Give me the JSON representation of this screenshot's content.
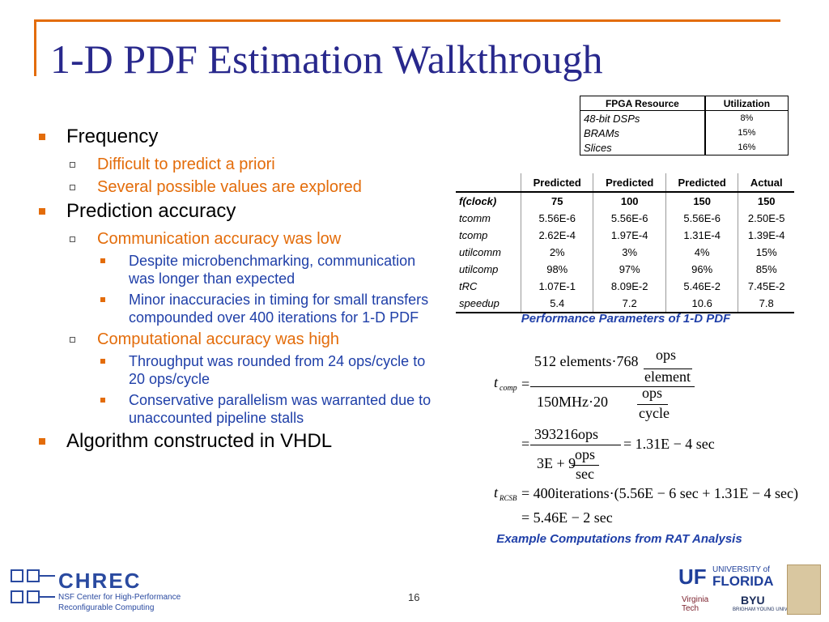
{
  "title": "1-D PDF Estimation Walkthrough",
  "bullets": [
    {
      "level": 0,
      "text": "Frequency"
    },
    {
      "level": 1,
      "text": "Difficult to predict a priori"
    },
    {
      "level": 1,
      "text": "Several possible values are explored"
    },
    {
      "level": 0,
      "text": "Prediction accuracy"
    },
    {
      "level": 1,
      "text": "Communication accuracy was low"
    },
    {
      "level": 2,
      "text": "Despite microbenchmarking, communication was longer than expected"
    },
    {
      "level": 2,
      "text": "Minor inaccuracies in timing for small transfers compounded over 400 iterations for 1-D PDF"
    },
    {
      "level": 1,
      "text": "Computational accuracy was high"
    },
    {
      "level": 2,
      "text": "Throughput was rounded from 24 ops/cycle to 20 ops/cycle"
    },
    {
      "level": 2,
      "text": "Conservative parallelism was warranted due to unaccounted pipeline stalls"
    },
    {
      "level": 0,
      "text": "Algorithm constructed in VHDL"
    }
  ],
  "fpga_table": {
    "header": [
      "FPGA Resource",
      "Utilization"
    ],
    "rows": [
      [
        "48-bit DSPs",
        "8%"
      ],
      [
        "BRAMs",
        "15%"
      ],
      [
        "Slices",
        "16%"
      ]
    ]
  },
  "perf_table": {
    "header": [
      "Predicted",
      "Predicted",
      "Predicted",
      "Actual"
    ],
    "rows": [
      [
        "f(clock)",
        "75",
        "100",
        "150",
        "150"
      ],
      [
        "tcomm",
        "5.56E-6",
        "5.56E-6",
        "5.56E-6",
        "2.50E-5"
      ],
      [
        "tcomp",
        "2.62E-4",
        "1.97E-4",
        "1.31E-4",
        "1.39E-4"
      ],
      [
        "utilcomm",
        "2%",
        "3%",
        "4%",
        "15%"
      ],
      [
        "utilcomp",
        "98%",
        "97%",
        "96%",
        "85%"
      ],
      [
        "tRC",
        "1.07E-1",
        "8.09E-2",
        "5.46E-2",
        "7.45E-2"
      ],
      [
        "speedup",
        "5.4",
        "7.2",
        "10.6",
        "7.8"
      ]
    ],
    "caption": "Performance Parameters of 1-D PDF"
  },
  "equations": {
    "eq1": {
      "t": "t",
      "sub": "comp",
      "eq": "=",
      "num": "512 elements·768",
      "num_frac_top": "ops",
      "num_frac_bottom": "element",
      "den": "150MHz·20",
      "den_frac_top": "ops",
      "den_frac_bottom": "cycle"
    },
    "eq2": {
      "eq": "=",
      "num": "393216ops",
      "den": "3E + 9",
      "den_frac_top": "ops",
      "den_frac_bottom": "sec",
      "result": "= 1.31E − 4 sec"
    },
    "eq3": {
      "t": "t",
      "sub": "RCSB",
      "expr": "= 400iterations·(5.56E − 6 sec + 1.31E − 4 sec)"
    },
    "eq4": {
      "expr": "= 5.46E − 2 sec"
    },
    "caption": "Example Computations from RAT Analysis"
  },
  "footer": {
    "logo": "CHREC",
    "logo_line1": "NSF Center for High-Performance",
    "logo_line2": "Reconfigurable Computing",
    "page": "16",
    "uf": "UF",
    "uf_top": "UNIVERSITY of",
    "uf_bottom": "FLORIDA",
    "vt": "Virginia Tech",
    "byu": "BYU",
    "byu_sub": "BRIGHAM YOUNG UNIVERSITY"
  }
}
